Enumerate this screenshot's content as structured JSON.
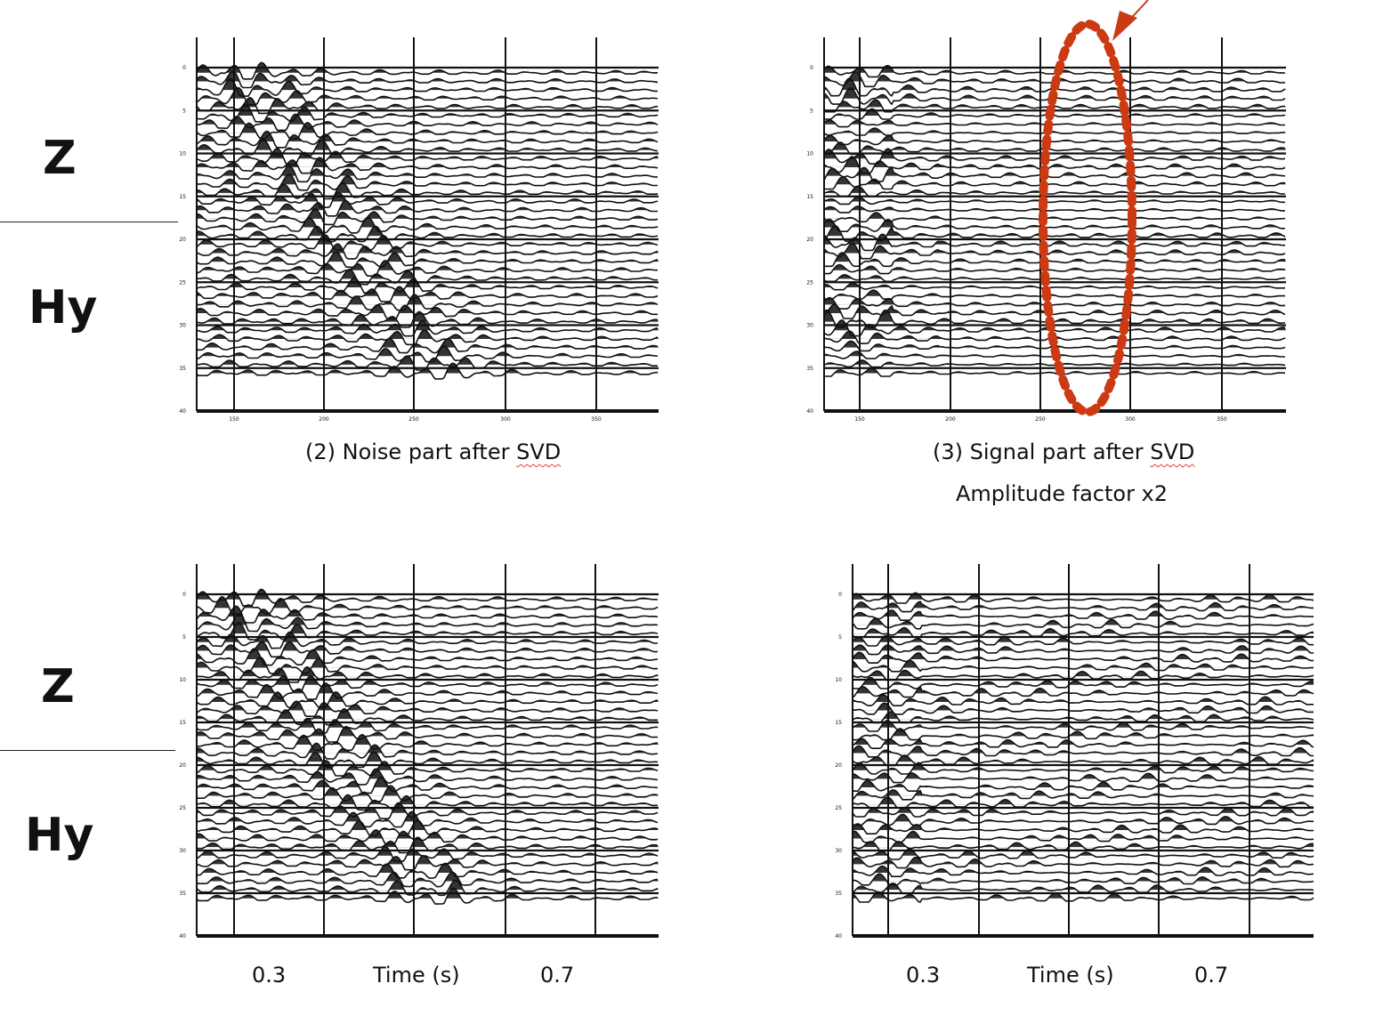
{
  "labels": {
    "top_z": "Z",
    "top_hy": "Hy",
    "bottom_z": "Z",
    "bottom_hy": "Hy"
  },
  "captions": {
    "noise_prefix": "(2) Noise part after",
    "noise_suffix": "SVD",
    "signal_prefix": "(3) Signal part after",
    "signal_suffix": "SVD",
    "amplitude": "Amplitude factor x2"
  },
  "bottom_axis": {
    "left": {
      "tick1": "0.3",
      "title": "Time (s)",
      "tick2": "0.7"
    },
    "right": {
      "tick1": "0.3",
      "title": "Time (s)",
      "tick2": "0.7"
    }
  },
  "panels": [
    {
      "id": "top-left",
      "trace_ticks": [
        "0",
        "5",
        "10",
        "15",
        "20",
        "25",
        "30",
        "35",
        "40"
      ],
      "x_ticks": [
        "150",
        "200",
        "250",
        "300",
        "350"
      ]
    },
    {
      "id": "top-right",
      "trace_ticks": [
        "0",
        "5",
        "10",
        "15",
        "20",
        "25",
        "30",
        "35",
        "40"
      ],
      "x_ticks": [
        "150",
        "200",
        "250",
        "300",
        "350"
      ]
    },
    {
      "id": "bottom-left",
      "trace_ticks": [
        "0",
        "5",
        "10",
        "15",
        "20",
        "25",
        "30",
        "35",
        "40"
      ]
    },
    {
      "id": "bottom-right",
      "trace_ticks": [
        "0",
        "5",
        "10",
        "15",
        "20",
        "25",
        "30",
        "35",
        "40"
      ]
    }
  ],
  "colors": {
    "ink": "#111111",
    "annotation": "#cc3a14",
    "squiggle": "#e04040"
  }
}
